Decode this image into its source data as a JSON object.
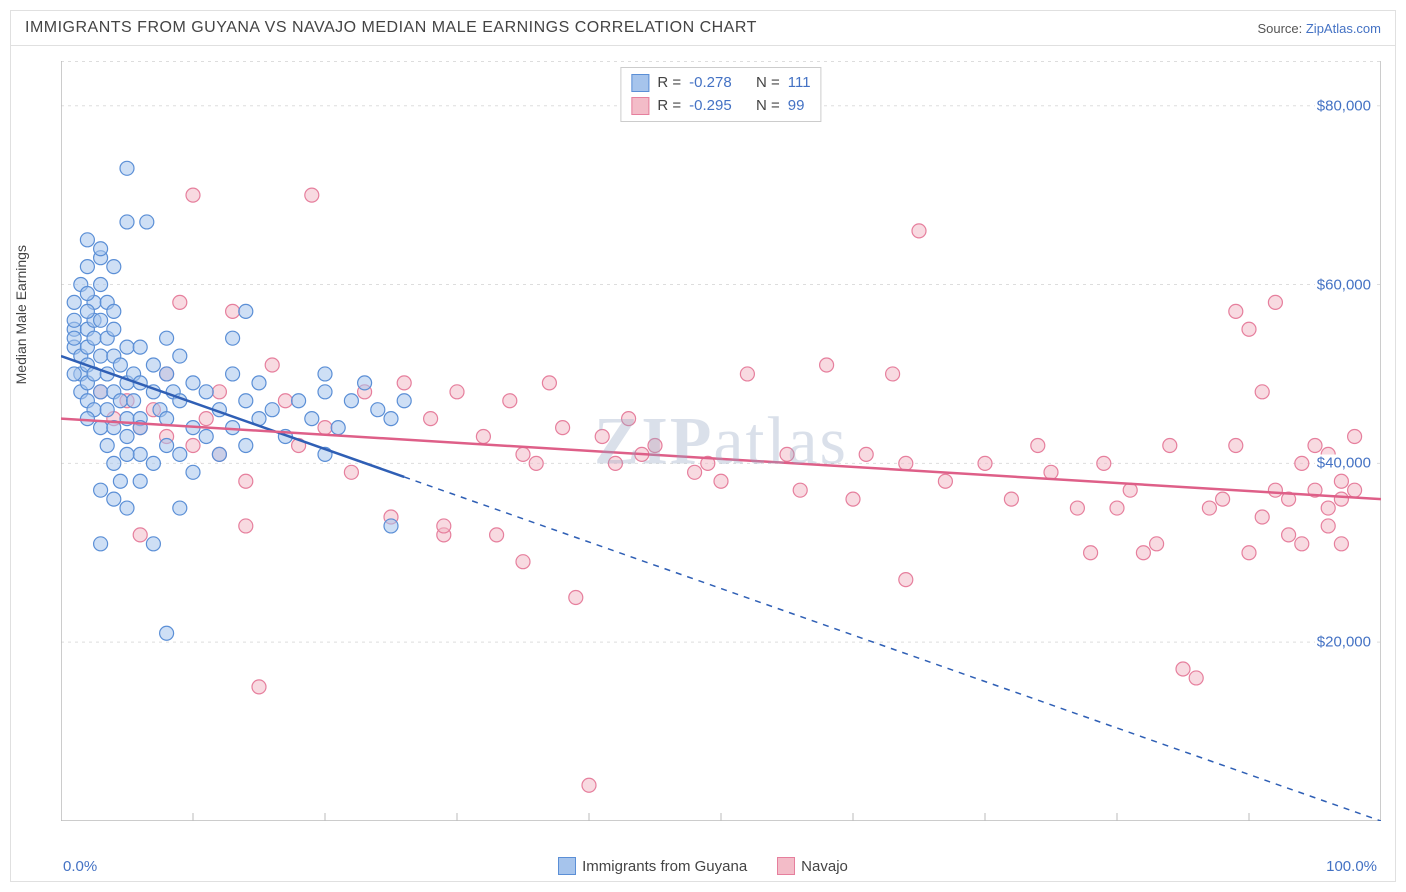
{
  "chart": {
    "title": "IMMIGRANTS FROM GUYANA VS NAVAJO MEDIAN MALE EARNINGS CORRELATION CHART",
    "source_prefix": "Source: ",
    "source_name": "ZipAtlas.com",
    "watermark_bold": "ZIP",
    "watermark_rest": "atlas",
    "y_axis_label": "Median Male Earnings",
    "type": "scatter",
    "xlim": [
      0,
      100
    ],
    "ylim": [
      0,
      85000
    ],
    "x_min_label": "0.0%",
    "x_max_label": "100.0%",
    "y_ticks": [
      {
        "v": 20000,
        "label": "$20,000"
      },
      {
        "v": 40000,
        "label": "$40,000"
      },
      {
        "v": 60000,
        "label": "$60,000"
      },
      {
        "v": 80000,
        "label": "$80,000"
      }
    ],
    "x_tick_step": 10,
    "background_color": "#ffffff",
    "grid_color": "#dddddd",
    "axis_color": "#bbbbbb",
    "marker_radius": 7,
    "marker_opacity": 0.55,
    "trend_width": 2.5,
    "series": [
      {
        "name": "Immigrants from Guyana",
        "fill": "#a6c4ec",
        "stroke": "#5b8fd6",
        "trend_color": "#2f5fb5",
        "R_label": "R = ",
        "R": "-0.278",
        "N_label": "N = ",
        "N": "111",
        "trend": {
          "x1": 0,
          "y1": 52000,
          "x2": 100,
          "y2": 0,
          "solid_until_x": 26
        },
        "points": [
          [
            1,
            53000
          ],
          [
            1,
            55000
          ],
          [
            1,
            56000
          ],
          [
            1,
            58000
          ],
          [
            1.5,
            50000
          ],
          [
            1.5,
            52000
          ],
          [
            1.5,
            60000
          ],
          [
            1.5,
            48000
          ],
          [
            2,
            47000
          ],
          [
            2,
            49000
          ],
          [
            2,
            51000
          ],
          [
            2,
            53000
          ],
          [
            2,
            55000
          ],
          [
            2,
            62000
          ],
          [
            2,
            65000
          ],
          [
            2.5,
            46000
          ],
          [
            2.5,
            50000
          ],
          [
            2.5,
            54000
          ],
          [
            2.5,
            56000
          ],
          [
            2.5,
            58000
          ],
          [
            3,
            44000
          ],
          [
            3,
            48000
          ],
          [
            3,
            52000
          ],
          [
            3,
            56000
          ],
          [
            3,
            60000
          ],
          [
            3,
            63000
          ],
          [
            3.5,
            42000
          ],
          [
            3.5,
            46000
          ],
          [
            3.5,
            50000
          ],
          [
            3.5,
            54000
          ],
          [
            3.5,
            58000
          ],
          [
            4,
            40000
          ],
          [
            4,
            44000
          ],
          [
            4,
            48000
          ],
          [
            4,
            52000
          ],
          [
            4,
            55000
          ],
          [
            4,
            36000
          ],
          [
            4.5,
            47000
          ],
          [
            4.5,
            51000
          ],
          [
            4.5,
            38000
          ],
          [
            5,
            45000
          ],
          [
            5,
            49000
          ],
          [
            5,
            53000
          ],
          [
            5,
            73000
          ],
          [
            5,
            35000
          ],
          [
            5,
            43000
          ],
          [
            5.5,
            47000
          ],
          [
            5.5,
            50000
          ],
          [
            6,
            41000
          ],
          [
            6,
            45000
          ],
          [
            6,
            49000
          ],
          [
            6,
            53000
          ],
          [
            6,
            44000
          ],
          [
            6.5,
            67000
          ],
          [
            7,
            48000
          ],
          [
            7,
            51000
          ],
          [
            7,
            40000
          ],
          [
            7,
            31000
          ],
          [
            7.5,
            46000
          ],
          [
            8,
            42000
          ],
          [
            8,
            50000
          ],
          [
            8,
            54000
          ],
          [
            8,
            45000
          ],
          [
            8.5,
            48000
          ],
          [
            9,
            41000
          ],
          [
            9,
            47000
          ],
          [
            9,
            52000
          ],
          [
            9,
            35000
          ],
          [
            10,
            44000
          ],
          [
            10,
            49000
          ],
          [
            10,
            39000
          ],
          [
            11,
            48000
          ],
          [
            11,
            43000
          ],
          [
            12,
            46000
          ],
          [
            12,
            41000
          ],
          [
            13,
            44000
          ],
          [
            13,
            50000
          ],
          [
            13,
            54000
          ],
          [
            14,
            42000
          ],
          [
            14,
            47000
          ],
          [
            14,
            57000
          ],
          [
            15,
            45000
          ],
          [
            15,
            49000
          ],
          [
            16,
            46000
          ],
          [
            17,
            43000
          ],
          [
            18,
            47000
          ],
          [
            19,
            45000
          ],
          [
            20,
            48000
          ],
          [
            20,
            50000
          ],
          [
            21,
            44000
          ],
          [
            22,
            47000
          ],
          [
            23,
            49000
          ],
          [
            24,
            46000
          ],
          [
            25,
            45000
          ],
          [
            26,
            47000
          ],
          [
            8,
            21000
          ],
          [
            3,
            37000
          ],
          [
            4,
            62000
          ],
          [
            2,
            59000
          ],
          [
            5,
            67000
          ],
          [
            25,
            33000
          ],
          [
            20,
            41000
          ],
          [
            3,
            31000
          ],
          [
            6,
            38000
          ],
          [
            5,
            41000
          ],
          [
            4,
            57000
          ],
          [
            3,
            64000
          ],
          [
            2,
            57000
          ],
          [
            1,
            54000
          ],
          [
            1,
            50000
          ],
          [
            2,
            45000
          ]
        ]
      },
      {
        "name": "Navajo",
        "fill": "#f3bcc8",
        "stroke": "#e67f9d",
        "trend_color": "#de5f88",
        "R_label": "R = ",
        "R": "-0.295",
        "N_label": "N = ",
        "N": "99",
        "trend": {
          "x1": 0,
          "y1": 45000,
          "x2": 100,
          "y2": 36000,
          "solid_until_x": 100
        },
        "points": [
          [
            3,
            48000
          ],
          [
            4,
            45000
          ],
          [
            5,
            47000
          ],
          [
            6,
            44000
          ],
          [
            7,
            46000
          ],
          [
            8,
            43000
          ],
          [
            9,
            58000
          ],
          [
            10,
            70000
          ],
          [
            11,
            45000
          ],
          [
            12,
            41000
          ],
          [
            13,
            57000
          ],
          [
            14,
            38000
          ],
          [
            15,
            15000
          ],
          [
            16,
            51000
          ],
          [
            18,
            42000
          ],
          [
            19,
            70000
          ],
          [
            20,
            44000
          ],
          [
            22,
            39000
          ],
          [
            23,
            48000
          ],
          [
            25,
            34000
          ],
          [
            26,
            49000
          ],
          [
            28,
            45000
          ],
          [
            29,
            32000
          ],
          [
            30,
            48000
          ],
          [
            32,
            43000
          ],
          [
            33,
            32000
          ],
          [
            34,
            47000
          ],
          [
            35,
            41000
          ],
          [
            36,
            40000
          ],
          [
            37,
            49000
          ],
          [
            38,
            44000
          ],
          [
            39,
            25000
          ],
          [
            40,
            4000
          ],
          [
            41,
            43000
          ],
          [
            42,
            40000
          ],
          [
            43,
            45000
          ],
          [
            44,
            41000
          ],
          [
            45,
            42000
          ],
          [
            48,
            39000
          ],
          [
            49,
            40000
          ],
          [
            50,
            38000
          ],
          [
            52,
            50000
          ],
          [
            55,
            41000
          ],
          [
            56,
            37000
          ],
          [
            58,
            51000
          ],
          [
            60,
            36000
          ],
          [
            61,
            41000
          ],
          [
            63,
            50000
          ],
          [
            64,
            27000
          ],
          [
            65,
            66000
          ],
          [
            67,
            38000
          ],
          [
            70,
            40000
          ],
          [
            72,
            36000
          ],
          [
            74,
            42000
          ],
          [
            75,
            39000
          ],
          [
            77,
            35000
          ],
          [
            78,
            30000
          ],
          [
            79,
            40000
          ],
          [
            80,
            35000
          ],
          [
            81,
            37000
          ],
          [
            82,
            30000
          ],
          [
            83,
            31000
          ],
          [
            84,
            42000
          ],
          [
            85,
            17000
          ],
          [
            86,
            16000
          ],
          [
            87,
            35000
          ],
          [
            88,
            36000
          ],
          [
            89,
            57000
          ],
          [
            89,
            42000
          ],
          [
            90,
            30000
          ],
          [
            90,
            55000
          ],
          [
            91,
            34000
          ],
          [
            91,
            48000
          ],
          [
            92,
            37000
          ],
          [
            92,
            58000
          ],
          [
            93,
            36000
          ],
          [
            93,
            32000
          ],
          [
            94,
            40000
          ],
          [
            94,
            31000
          ],
          [
            95,
            37000
          ],
          [
            95,
            42000
          ],
          [
            96,
            35000
          ],
          [
            96,
            41000
          ],
          [
            96,
            33000
          ],
          [
            97,
            38000
          ],
          [
            97,
            36000
          ],
          [
            97,
            31000
          ],
          [
            98,
            40000
          ],
          [
            98,
            37000
          ],
          [
            98,
            43000
          ],
          [
            14,
            33000
          ],
          [
            29,
            33000
          ],
          [
            35,
            29000
          ],
          [
            17,
            47000
          ],
          [
            6,
            32000
          ],
          [
            8,
            50000
          ],
          [
            10,
            42000
          ],
          [
            12,
            48000
          ],
          [
            64,
            40000
          ]
        ]
      }
    ]
  }
}
